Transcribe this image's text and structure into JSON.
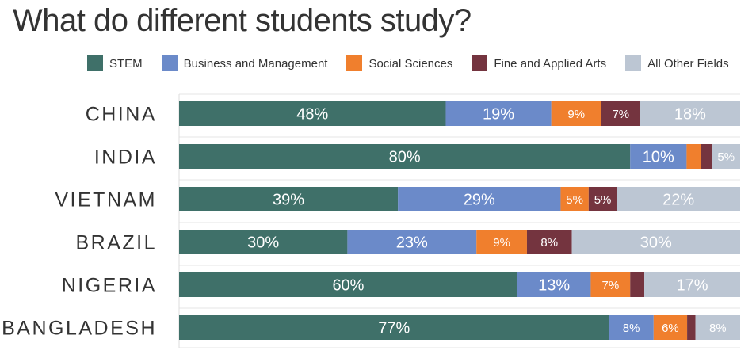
{
  "chart_data": {
    "type": "bar",
    "orientation": "horizontal",
    "stacked": true,
    "percent": true,
    "title": "What do different students study?",
    "xlabel": "",
    "ylabel": "",
    "xlim": [
      0,
      100
    ],
    "grid": false,
    "legend_position": "top",
    "categories": [
      "CHINA",
      "INDIA",
      "VIETNAM",
      "BRAZIL",
      "NIGERIA",
      "BANGLADESH"
    ],
    "series": [
      {
        "name": "STEM",
        "color": "#3f7069",
        "values": [
          48,
          80,
          39,
          30,
          60,
          77
        ],
        "labels": [
          "48%",
          "80%",
          "39%",
          "30%",
          "60%",
          "77%"
        ]
      },
      {
        "name": "Business and Management",
        "color": "#6b8ac9",
        "values": [
          19,
          10,
          29,
          23,
          13,
          8
        ],
        "labels": [
          "19%",
          "10%",
          "29%",
          "23%",
          "13%",
          "8%"
        ]
      },
      {
        "name": "Social Sciences",
        "color": "#f07f2d",
        "values": [
          9,
          2.5,
          5,
          9,
          7,
          6
        ],
        "labels": [
          "9%",
          "",
          "5%",
          "9%",
          "7%",
          "6%"
        ]
      },
      {
        "name": "Fine and Applied Arts",
        "color": "#74343f",
        "values": [
          7,
          2,
          5,
          8,
          2.5,
          1.5
        ],
        "labels": [
          "7%",
          "",
          "5%",
          "8%",
          "",
          ""
        ]
      },
      {
        "name": "All Other Fields",
        "color": "#bcc6d3",
        "values": [
          18,
          5,
          22,
          30,
          17,
          8
        ],
        "labels": [
          "18%",
          "5%",
          "22%",
          "30%",
          "17%",
          "8%"
        ]
      }
    ]
  }
}
